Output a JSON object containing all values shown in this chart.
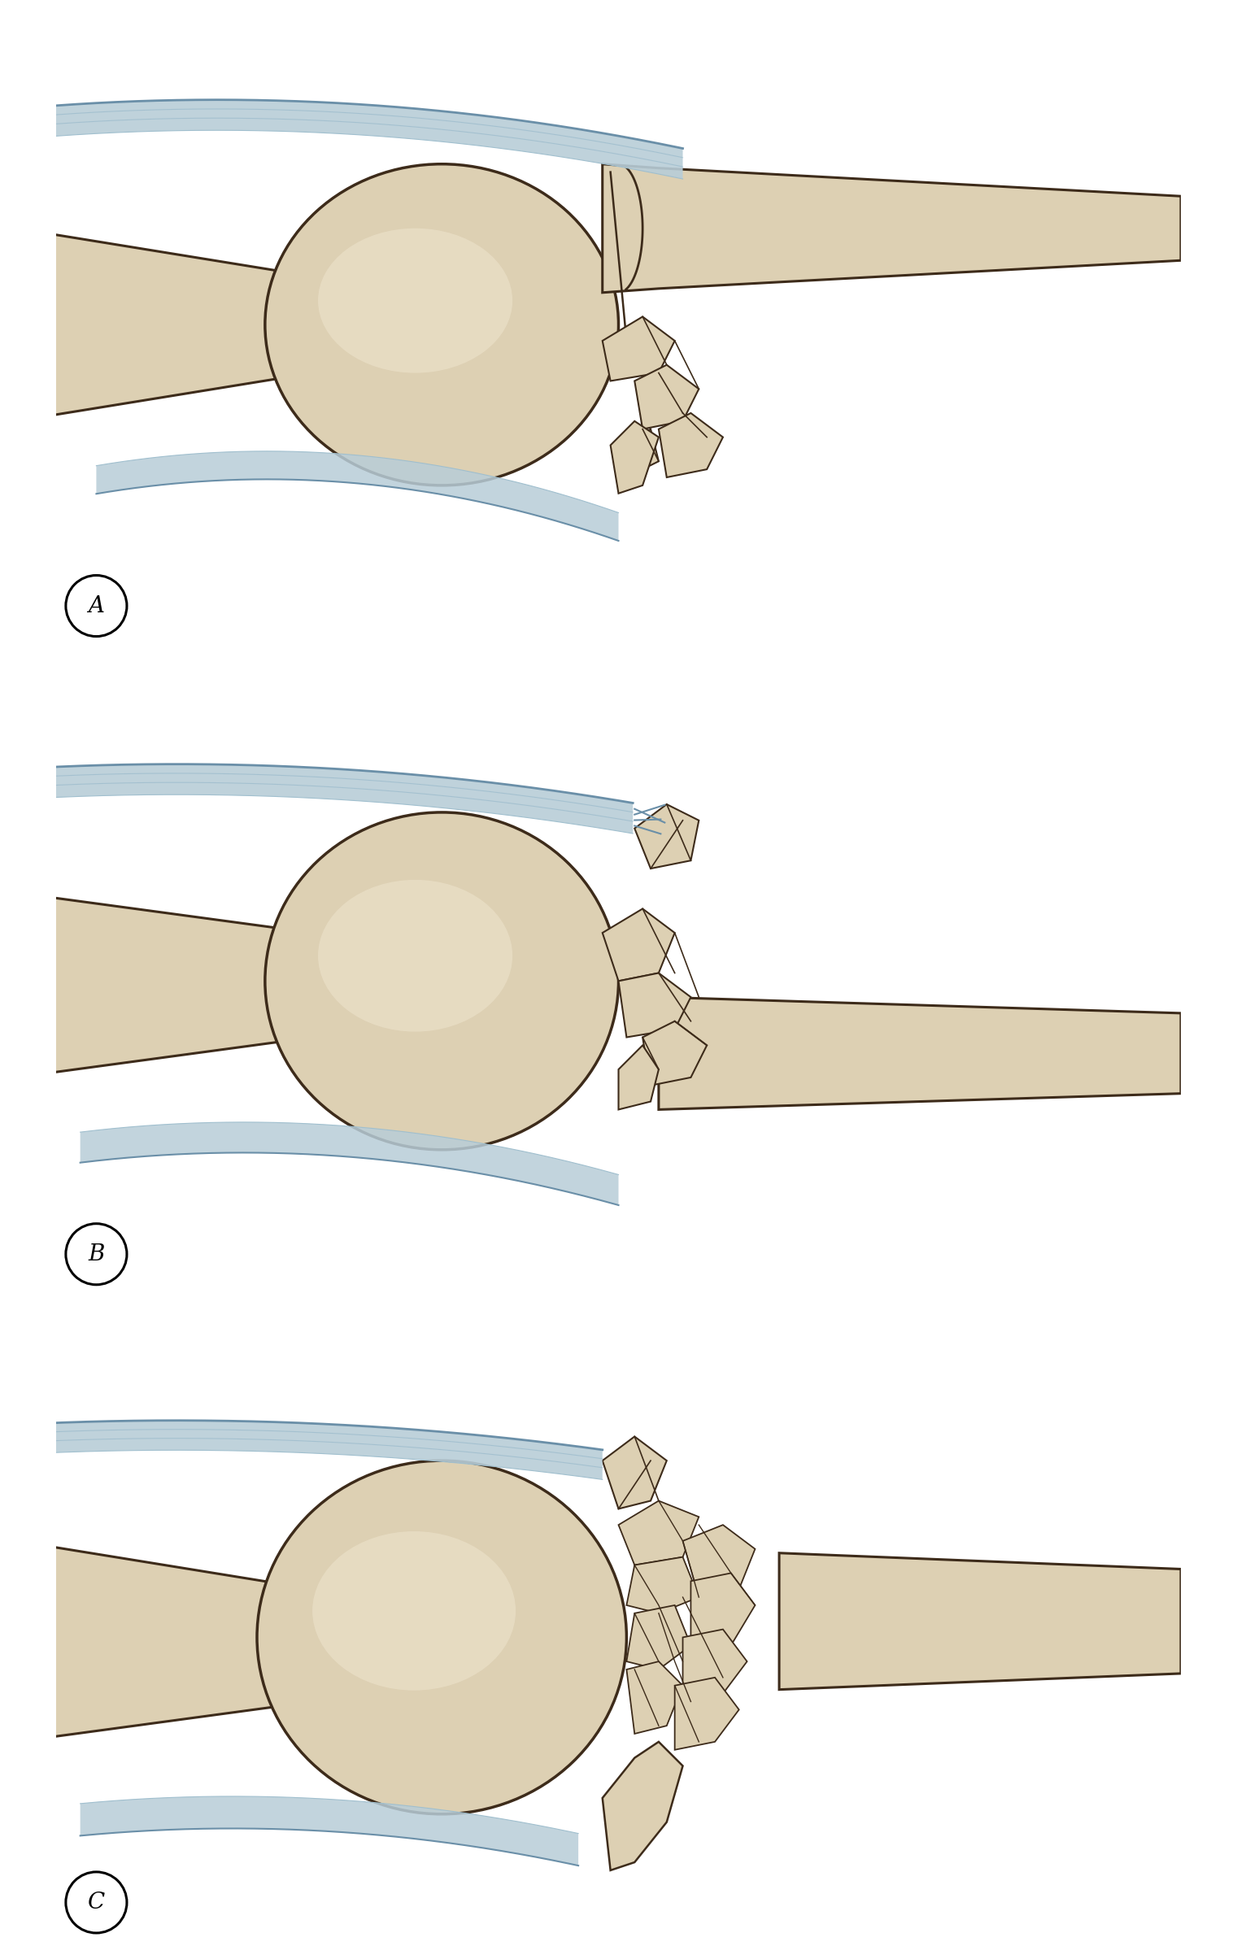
{
  "bone_fill": "#ddd0b3",
  "bone_fill_light": "#ede3cc",
  "bone_fill_dark": "#c4ae88",
  "bone_outline": "#3d2b1a",
  "cartilage_fill": "#b8cdd8",
  "cartilage_fill2": "#a0bfce",
  "cartilage_dark": "#6a8fa8",
  "background": "#ffffff",
  "label_fontsize": 20,
  "panels": [
    "A",
    "B",
    "C"
  ]
}
